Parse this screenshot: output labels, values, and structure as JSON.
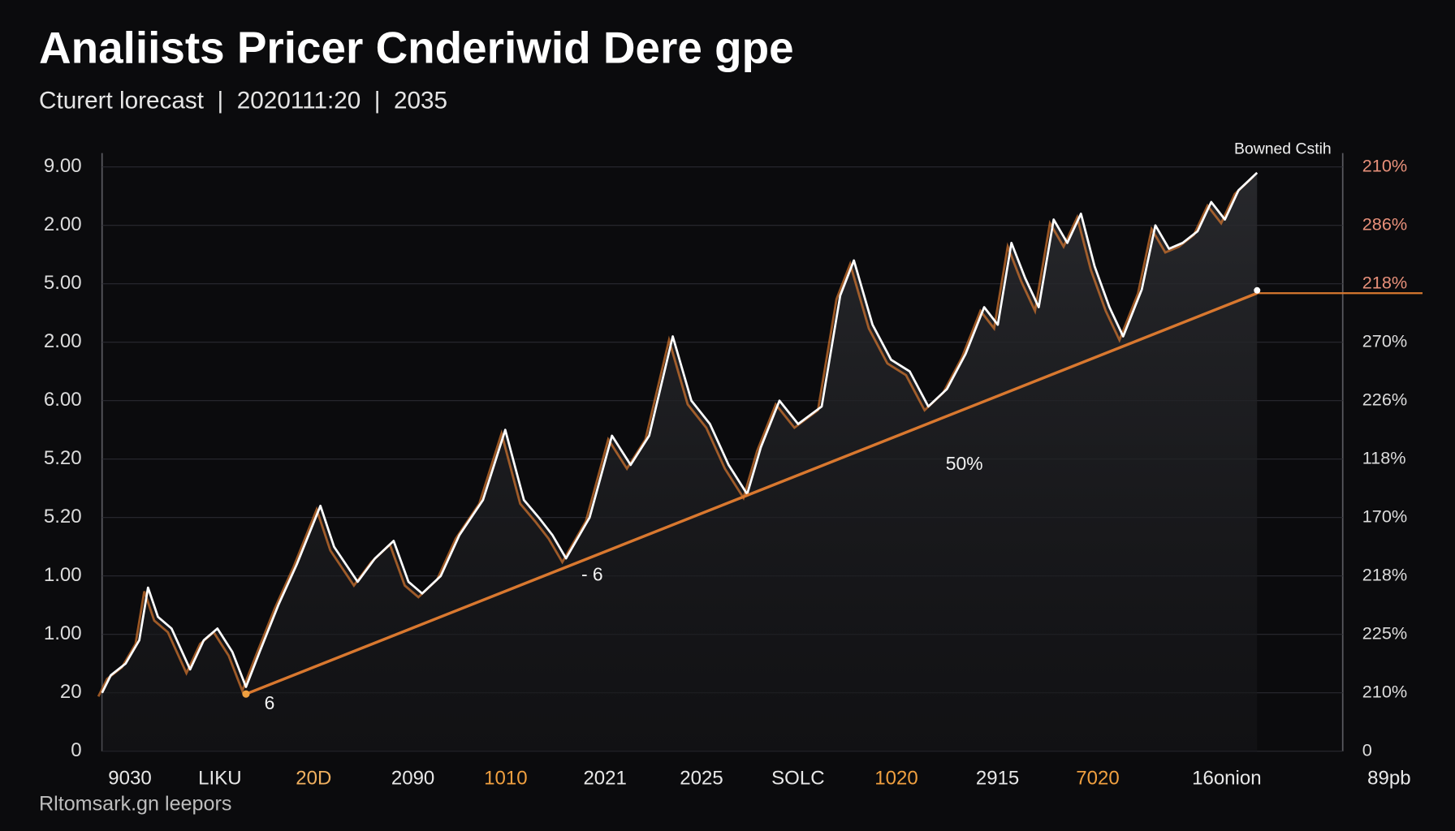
{
  "chart_data": {
    "type": "line",
    "title": "Analiists Pricer Cnderiwid Dere gpe",
    "subtitle": "Cturert lorecast  |  2020111:20  |  2035",
    "footer": "Rltomsark.gn leepors",
    "y_axis_labels": [
      "9.00",
      "2.00",
      "5.00",
      "2.00",
      "6.00",
      "5.20",
      "5.20",
      "1.00",
      "1.00",
      "20",
      "0"
    ],
    "y2_axis_labels": [
      "210%",
      "286%",
      "218%",
      "270%",
      "226%",
      "118%",
      "170%",
      "218%",
      "225%",
      "210%",
      "0"
    ],
    "x_axis_labels": [
      "9030",
      "LIKU",
      "20D",
      "2090",
      "1010",
      "2021",
      "2025",
      "SOLC",
      "1020",
      "2915",
      "7020",
      "16onion",
      "89pb"
    ],
    "x_axis_label_colors": [
      "#e8e8e8",
      "#e8e8e8",
      "#f0b060",
      "#e8e8e8",
      "#f0a040",
      "#e8e8e8",
      "#e8e8e8",
      "#e8e8e8",
      "#f0a040",
      "#e8e8e8",
      "#f0a040",
      "#e8e8e8",
      "#e8e8e8"
    ],
    "xlim": [
      0,
      100
    ],
    "ylim": [
      0,
      10
    ],
    "grid": true,
    "series": [
      {
        "name": "Bowned Cstih",
        "color": "#ffffff",
        "x": [
          0,
          0.7,
          1.9,
          3.0,
          3.7,
          4.5,
          5.6,
          7.1,
          8.2,
          9.3,
          10.5,
          11.6,
          12.7,
          14.2,
          15.7,
          17.6,
          18.7,
          20.6,
          22.0,
          23.5,
          24.7,
          25.8,
          27.3,
          28.8,
          30.7,
          32.5,
          34.0,
          35.2,
          36.3,
          37.4,
          39.3,
          41.1,
          42.6,
          44.1,
          46.0,
          47.5,
          49.0,
          50.5,
          52.0,
          53.1,
          54.6,
          56.1,
          58.0,
          59.5,
          60.6,
          62.1,
          63.6,
          65.1,
          66.6,
          68.1,
          69.6,
          71.1,
          72.2,
          73.3,
          74.4,
          75.5,
          76.7,
          77.8,
          78.9,
          80.0,
          81.2,
          82.3,
          83.8,
          84.9,
          86.0,
          87.1,
          88.3,
          89.4,
          90.5,
          91.6,
          93.1
        ],
        "values": [
          1.0,
          1.3,
          1.5,
          1.9,
          2.8,
          2.3,
          2.1,
          1.4,
          1.9,
          2.1,
          1.7,
          1.1,
          1.7,
          2.5,
          3.2,
          4.2,
          3.5,
          2.9,
          3.3,
          3.6,
          2.9,
          2.7,
          3.0,
          3.7,
          4.3,
          5.5,
          4.3,
          4.0,
          3.7,
          3.3,
          4.0,
          5.4,
          4.9,
          5.4,
          7.1,
          6.0,
          5.6,
          4.9,
          4.4,
          5.2,
          6.0,
          5.6,
          5.9,
          7.8,
          8.4,
          7.3,
          6.7,
          6.5,
          5.9,
          6.2,
          6.8,
          7.6,
          7.3,
          8.7,
          8.1,
          7.6,
          9.1,
          8.7,
          9.2,
          8.3,
          7.6,
          7.1,
          7.9,
          9.0,
          8.6,
          8.7,
          8.9,
          9.4,
          9.1,
          9.6,
          9.9
        ]
      },
      {
        "color": "#d9782f",
        "x": [
          11.6,
          93.1
        ],
        "values": [
          0.98,
          7.84
        ]
      }
    ],
    "annotations": [
      {
        "text": "50%",
        "x": 69.5,
        "y": 4.9
      },
      {
        "text": "- 6",
        "x": 39.5,
        "y": 3.0
      },
      {
        "text": "6",
        "x": 13.5,
        "y": 0.8
      }
    ]
  }
}
